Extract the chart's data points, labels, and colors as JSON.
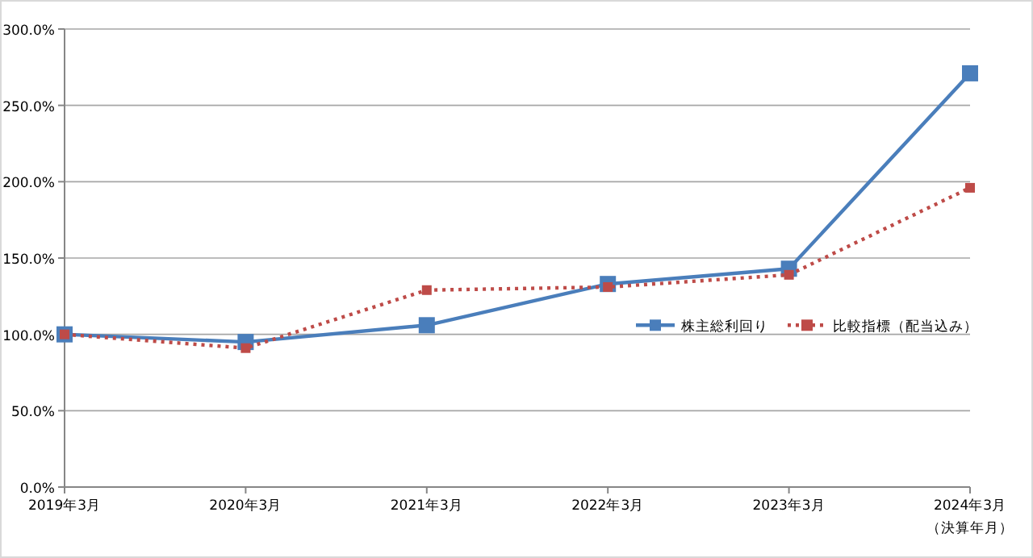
{
  "chart_data": {
    "type": "line",
    "categories": [
      "2019年3月",
      "2020年3月",
      "2021年3月",
      "2022年3月",
      "2023年3月",
      "2024年3月"
    ],
    "xlabel": "（決算年月）",
    "series": [
      {
        "name": "株主総利回り",
        "color": "#4a7ebb",
        "line_style": "solid",
        "values": [
          100,
          95,
          106,
          133,
          143,
          271
        ]
      },
      {
        "name": "比較指標（配当込み）",
        "color": "#be4b48",
        "line_style": "dotted",
        "values": [
          100,
          91,
          129,
          131,
          139,
          196
        ]
      }
    ],
    "ylim": [
      0,
      300
    ],
    "yticks": [
      {
        "value": 0,
        "label": "0.0%"
      },
      {
        "value": 50,
        "label": "50.0%"
      },
      {
        "value": 100,
        "label": "100.0%"
      },
      {
        "value": 150,
        "label": "150.0%"
      },
      {
        "value": 200,
        "label": "200.0%"
      },
      {
        "value": 250,
        "label": "250.0%"
      },
      {
        "value": 300,
        "label": "300.0%"
      }
    ],
    "grid": "y",
    "marker": "square",
    "legend": "right"
  }
}
